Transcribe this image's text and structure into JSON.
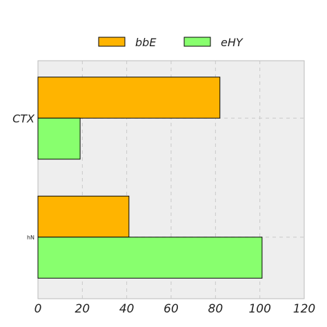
{
  "chart_data": {
    "type": "bar",
    "orientation": "horizontal",
    "categories": [
      "CTX",
      "hN"
    ],
    "series": [
      {
        "name": "bbE",
        "values": [
          82,
          41
        ],
        "color": "#ffb400"
      },
      {
        "name": "eHY",
        "values": [
          19,
          101
        ],
        "color": "#88ff6e"
      }
    ],
    "xlim": [
      0,
      120
    ],
    "x_ticks": [
      0,
      20,
      40,
      60,
      80,
      100,
      120
    ],
    "grid": true,
    "legend": "top-center",
    "background_color": "#eeeeee",
    "title": "",
    "xlabel": "",
    "ylabel": ""
  }
}
